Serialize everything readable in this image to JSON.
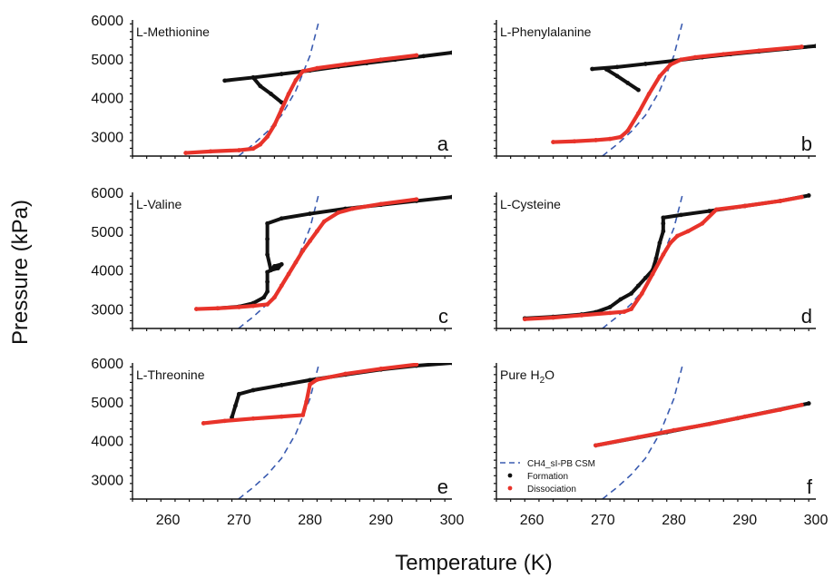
{
  "figure": {
    "xlabel": "Temperature (K)",
    "ylabel": "Pressure (kPa)"
  },
  "colors": {
    "formation": "#111111",
    "dissociation": "#e8332a",
    "model": "#3a5bb0",
    "axis": "#111111"
  },
  "legend": {
    "panel": "f",
    "entries": [
      {
        "key": "model",
        "label": "CH4_sI-PB CSM"
      },
      {
        "key": "formation",
        "label": "Formation"
      },
      {
        "key": "dissociation",
        "label": "Dissociation"
      }
    ]
  },
  "chart_data": [
    {
      "id": "a",
      "type": "line",
      "name": "L-Methionine",
      "letter": "a",
      "xlim": [
        255,
        300
      ],
      "ylim": [
        2500,
        6000
      ],
      "xticks": [
        260,
        270,
        280,
        290,
        300
      ],
      "yticks": [
        3000,
        4000,
        5000,
        6000
      ],
      "show_xticklabels": false,
      "show_yticklabels": true,
      "series": [
        {
          "name": "Formation",
          "key": "formation",
          "x": [
            268,
            272,
            276,
            280,
            284,
            288,
            292,
            296,
            300
          ],
          "y": [
            4440,
            4520,
            4610,
            4700,
            4800,
            4890,
            4980,
            5070,
            5160
          ]
        },
        {
          "name": "Formation",
          "key": "formation",
          "x": [
            272,
            273,
            274.5,
            276
          ],
          "y": [
            4520,
            4300,
            4100,
            3880
          ]
        },
        {
          "name": "Dissociation",
          "key": "dissociation",
          "x": [
            262.5,
            266,
            270,
            272,
            273,
            274,
            275,
            276,
            277,
            278,
            279,
            281,
            285,
            290,
            295
          ],
          "y": [
            2580,
            2620,
            2650,
            2690,
            2800,
            3000,
            3300,
            3700,
            4100,
            4450,
            4680,
            4760,
            4860,
            4980,
            5090
          ]
        }
      ]
    },
    {
      "id": "b",
      "type": "line",
      "name": "L-Phenylalanine",
      "letter": "b",
      "xlim": [
        255,
        300
      ],
      "ylim": [
        2500,
        6000
      ],
      "xticks": [
        260,
        270,
        280,
        290,
        300
      ],
      "yticks": [
        3000,
        4000,
        5000,
        6000
      ],
      "show_xticklabels": false,
      "show_yticklabels": false,
      "series": [
        {
          "name": "Formation",
          "key": "formation",
          "x": [
            268.5,
            272,
            276,
            280,
            284,
            288,
            292,
            296,
            300
          ],
          "y": [
            4740,
            4790,
            4870,
            4950,
            5040,
            5120,
            5190,
            5260,
            5330
          ]
        },
        {
          "name": "Formation",
          "key": "formation",
          "x": [
            270.5,
            272,
            273.5,
            275
          ],
          "y": [
            4730,
            4560,
            4380,
            4200
          ]
        },
        {
          "name": "Dissociation",
          "key": "dissociation",
          "x": [
            263,
            266,
            269,
            271,
            272.5,
            273.5,
            275,
            276.5,
            278,
            279.5,
            281,
            283,
            287,
            292,
            298
          ],
          "y": [
            2860,
            2880,
            2910,
            2940,
            2990,
            3150,
            3600,
            4100,
            4550,
            4850,
            4980,
            5040,
            5120,
            5210,
            5310
          ]
        }
      ]
    },
    {
      "id": "c",
      "type": "line",
      "name": "L-Valine",
      "letter": "c",
      "xlim": [
        255,
        300
      ],
      "ylim": [
        2500,
        6000
      ],
      "xticks": [
        260,
        270,
        280,
        290,
        300
      ],
      "yticks": [
        3000,
        4000,
        5000,
        6000
      ],
      "show_xticklabels": false,
      "show_yticklabels": true,
      "series": [
        {
          "name": "Formation",
          "key": "formation",
          "x": [
            267,
            270,
            272,
            273.5,
            274,
            274,
            274,
            274.5,
            275.5,
            276,
            275,
            274.5,
            274,
            274,
            274,
            276,
            280,
            285,
            290,
            295,
            300
          ],
          "y": [
            3020,
            3060,
            3150,
            3300,
            3450,
            3700,
            3950,
            4000,
            4050,
            4150,
            4100,
            4000,
            4400,
            4800,
            5200,
            5330,
            5450,
            5580,
            5680,
            5780,
            5880
          ]
        },
        {
          "name": "Dissociation",
          "key": "dissociation",
          "x": [
            264,
            267,
            270,
            272,
            274,
            275,
            276,
            277,
            278,
            279,
            280,
            281,
            282,
            284,
            286,
            290,
            295
          ],
          "y": [
            3000,
            3020,
            3050,
            3080,
            3120,
            3300,
            3600,
            3900,
            4200,
            4500,
            4750,
            5000,
            5250,
            5480,
            5580,
            5700,
            5820
          ]
        }
      ]
    },
    {
      "id": "d",
      "type": "line",
      "name": "L-Cysteine",
      "letter": "d",
      "xlim": [
        255,
        300
      ],
      "ylim": [
        2500,
        6000
      ],
      "xticks": [
        260,
        270,
        280,
        290,
        300
      ],
      "yticks": [
        3000,
        4000,
        5000,
        6000
      ],
      "show_xticklabels": false,
      "show_yticklabels": false,
      "series": [
        {
          "name": "Formation",
          "key": "formation",
          "x": [
            259,
            263,
            267,
            269,
            271,
            272.5,
            274,
            275,
            276,
            277,
            277.5,
            278,
            278.5,
            278.5,
            278.5,
            281,
            285,
            290,
            295,
            299
          ],
          "y": [
            2760,
            2800,
            2860,
            2920,
            3050,
            3250,
            3400,
            3600,
            3800,
            4000,
            4300,
            4700,
            5000,
            5200,
            5350,
            5420,
            5520,
            5650,
            5780,
            5920
          ]
        },
        {
          "name": "Dissociation",
          "key": "dissociation",
          "x": [
            259,
            263,
            267,
            271,
            273,
            274,
            275.5,
            277,
            278.5,
            279.5,
            280.5,
            282,
            284,
            286,
            290,
            295,
            298
          ],
          "y": [
            2740,
            2780,
            2840,
            2900,
            2930,
            3000,
            3400,
            3900,
            4400,
            4700,
            4880,
            5000,
            5200,
            5560,
            5650,
            5780,
            5880
          ]
        }
      ]
    },
    {
      "id": "e",
      "type": "line",
      "name": "L-Threonine",
      "letter": "e",
      "xlim": [
        255,
        300
      ],
      "ylim": [
        2500,
        6000
      ],
      "xticks": [
        260,
        270,
        280,
        290,
        300
      ],
      "yticks": [
        3000,
        4000,
        5000,
        6000
      ],
      "show_xticklabels": true,
      "show_yticklabels": true,
      "series": [
        {
          "name": "Formation",
          "key": "formation",
          "x": [
            269,
            269.5,
            270,
            272,
            276,
            280,
            285,
            290,
            295,
            300
          ],
          "y": [
            4600,
            4900,
            5200,
            5300,
            5430,
            5560,
            5700,
            5830,
            5930,
            6000
          ]
        },
        {
          "name": "Dissociation",
          "key": "dissociation",
          "x": [
            265,
            268,
            272,
            276,
            279,
            279.5,
            280,
            281,
            285,
            290,
            295
          ],
          "y": [
            4450,
            4510,
            4570,
            4620,
            4660,
            5000,
            5450,
            5570,
            5720,
            5850,
            5960
          ]
        }
      ]
    },
    {
      "id": "f",
      "type": "line",
      "name": "Pure H2O",
      "letter": "f",
      "xlim": [
        255,
        300
      ],
      "ylim": [
        2500,
        6000
      ],
      "xticks": [
        260,
        270,
        280,
        290,
        300
      ],
      "yticks": [
        3000,
        4000,
        5000,
        6000
      ],
      "show_xticklabels": true,
      "show_yticklabels": false,
      "series": [
        {
          "name": "Formation",
          "key": "formation",
          "x": [
            269,
            279,
            289,
            299
          ],
          "y": [
            3880,
            4220,
            4580,
            4960
          ]
        },
        {
          "name": "Dissociation",
          "key": "dissociation",
          "x": [
            269,
            275,
            280,
            285,
            290,
            295,
            298
          ],
          "y": [
            3880,
            4090,
            4270,
            4430,
            4620,
            4800,
            4920
          ]
        }
      ]
    }
  ],
  "model_curve": {
    "name": "CH4_sI-PB CSM",
    "x": [
      262,
      264,
      266,
      268,
      270,
      272,
      274,
      276,
      278,
      280,
      281.3
    ],
    "y": [
      1650,
      1830,
      2040,
      2260,
      2510,
      2800,
      3130,
      3550,
      4180,
      5080,
      6000
    ]
  }
}
